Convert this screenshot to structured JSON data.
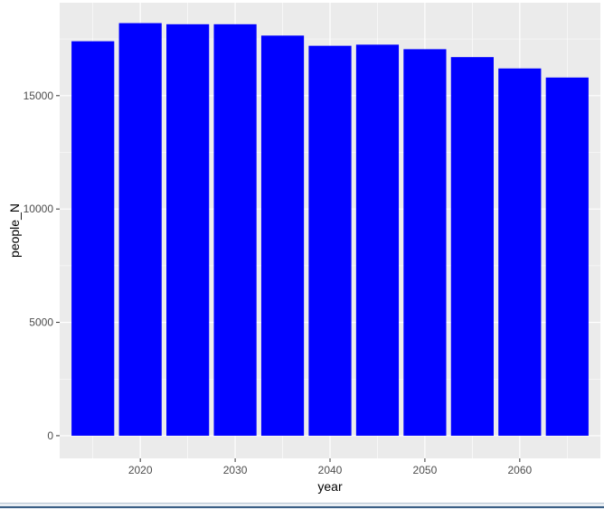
{
  "chart_data": {
    "type": "bar",
    "xlabel": "year",
    "ylabel": "people_N",
    "x": [
      2015,
      2020,
      2025,
      2030,
      2035,
      2040,
      2045,
      2050,
      2055,
      2060,
      2065
    ],
    "values": [
      17400,
      18200,
      18150,
      18150,
      17650,
      17200,
      17250,
      17050,
      16700,
      16200,
      15800
    ],
    "xticks": [
      "2020",
      "2030",
      "2040",
      "2050",
      "2060"
    ],
    "yticks": [
      "0",
      "5000",
      "10000",
      "15000"
    ],
    "xlim": [
      2011.5,
      2068.5
    ],
    "ylim": [
      -1000,
      19100
    ],
    "bar_color": "#0000ff",
    "panel_color": "#ebebeb",
    "grid": true,
    "legend": "none"
  }
}
